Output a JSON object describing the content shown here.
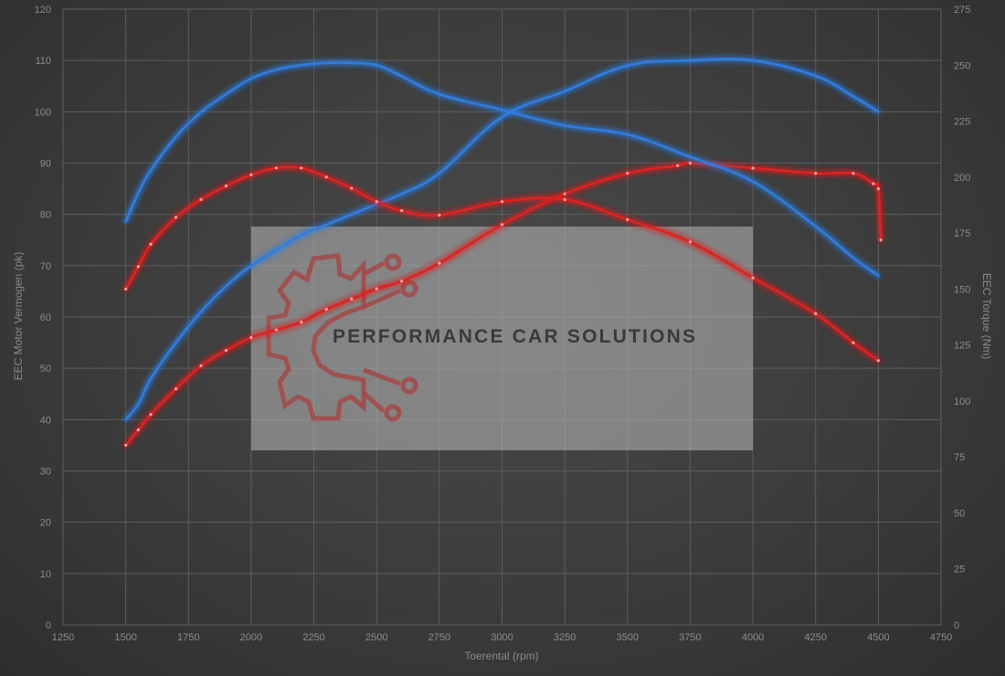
{
  "chart_data": {
    "type": "line",
    "xlabel": "Toerental (rpm)",
    "ylabel_left": "EEC Motor Vermogen (pk)",
    "ylabel_right": "EEC Torque (Nm)",
    "xlim": [
      1250,
      4750
    ],
    "ylim_left": [
      0,
      120
    ],
    "ylim_right": [
      0,
      275
    ],
    "xticks": [
      "1250",
      "1500",
      "1750",
      "2000",
      "2250",
      "2500",
      "2750",
      "3000",
      "3250",
      "3500",
      "3750",
      "4000",
      "4250",
      "4500",
      "4750"
    ],
    "yticks_left": [
      "0",
      "10",
      "20",
      "30",
      "40",
      "50",
      "60",
      "70",
      "80",
      "90",
      "100",
      "110",
      "120"
    ],
    "yticks_right": [
      "0",
      "25",
      "50",
      "75",
      "100",
      "125",
      "150",
      "175",
      "200",
      "225",
      "250",
      "275"
    ],
    "grid": true,
    "series": [
      {
        "axis": "left",
        "color": "#2f7de1",
        "x": [
          1500,
          1550,
          1600,
          1700,
          1800,
          1900,
          2000,
          2100,
          2200,
          2300,
          2400,
          2500,
          2600,
          2750,
          3000,
          3250,
          3500,
          3750,
          4000,
          4250,
          4400,
          4500
        ],
        "y": [
          40,
          43,
          48,
          55,
          61,
          66,
          70,
          73,
          76,
          78,
          80,
          82,
          84,
          88,
          99,
          104,
          109,
          110,
          110,
          107,
          103,
          100
        ]
      },
      {
        "axis": "left",
        "color": "#e02020",
        "x": [
          1500,
          1550,
          1600,
          1700,
          1800,
          1900,
          2000,
          2100,
          2200,
          2300,
          2400,
          2500,
          2600,
          2750,
          3000,
          3250,
          3500,
          3700,
          3750,
          4000,
          4250,
          4400,
          4480,
          4500,
          4510
        ],
        "y": [
          35,
          38,
          41,
          46,
          50.5,
          53.5,
          56,
          57.5,
          59,
          61.5,
          63.5,
          65.5,
          67,
          70.5,
          78,
          84,
          88,
          89.5,
          90,
          89,
          88,
          88,
          86,
          85,
          75
        ]
      },
      {
        "axis": "right",
        "color": "#2f7de1",
        "x": [
          1500,
          1550,
          1600,
          1700,
          1800,
          1900,
          2000,
          2100,
          2200,
          2300,
          2400,
          2500,
          2600,
          2750,
          3000,
          3250,
          3500,
          3750,
          4000,
          4250,
          4400,
          4500
        ],
        "y": [
          180,
          193,
          203,
          218,
          229,
          237,
          244,
          248,
          250,
          251,
          251,
          250,
          245,
          237,
          230,
          223,
          219,
          209,
          198,
          178,
          164,
          156
        ]
      },
      {
        "axis": "right",
        "color": "#e02020",
        "x": [
          1500,
          1550,
          1600,
          1700,
          1800,
          1900,
          2000,
          2100,
          2200,
          2300,
          2400,
          2500,
          2600,
          2750,
          3000,
          3250,
          3500,
          3750,
          4000,
          4250,
          4400,
          4500
        ],
        "y": [
          150,
          160,
          170,
          182,
          190,
          196,
          201,
          204,
          204,
          200,
          195,
          189,
          185,
          183,
          189,
          190,
          181,
          171,
          155,
          139,
          126,
          118
        ]
      }
    ]
  },
  "watermark": {
    "text": "PERFORMANCE CAR SOLUTIONS"
  }
}
